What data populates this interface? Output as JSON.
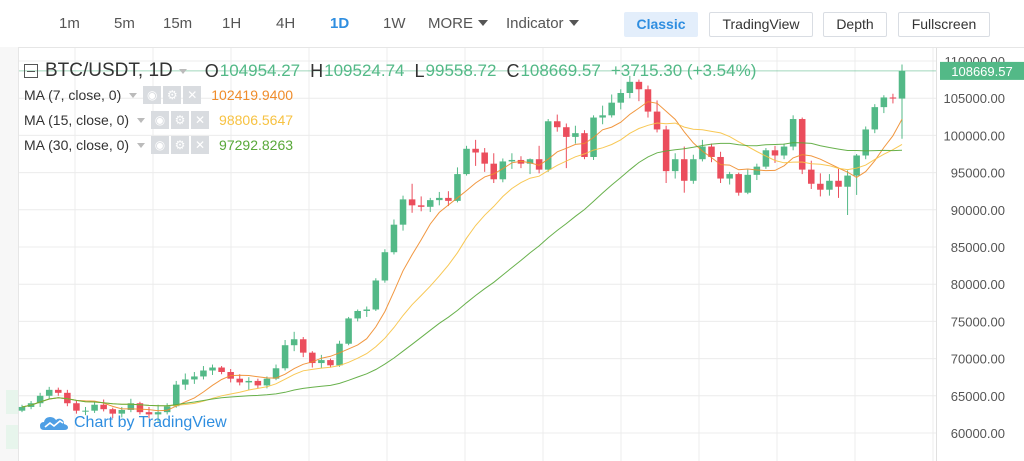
{
  "toolbar": {
    "intervals": [
      "1m",
      "5m",
      "15m",
      "1H",
      "4H",
      "1D",
      "1W"
    ],
    "active_interval": "1D",
    "more_label": "MORE",
    "indicator_label": "Indicator",
    "view_buttons": [
      "Classic",
      "TradingView",
      "Depth",
      "Fullscreen"
    ],
    "active_view": "Classic"
  },
  "legend": {
    "symbol": "BTC/USDT, 1D",
    "open_label": "O",
    "open": "104954.27",
    "high_label": "H",
    "high": "109524.74",
    "low_label": "L",
    "low": "99558.72",
    "close_label": "C",
    "close": "108669.57",
    "change": "+3715.30 (+3.54%)",
    "ma": [
      {
        "label": "MA (7, close, 0)",
        "value": "102419.9400",
        "color": "#ef8c2b"
      },
      {
        "label": "MA (15, close, 0)",
        "value": "98806.5647",
        "color": "#f7c242"
      },
      {
        "label": "MA (30, close, 0)",
        "value": "97292.8263",
        "color": "#58a839"
      }
    ],
    "icons": [
      "eye-icon",
      "gear-icon",
      "close-icon"
    ]
  },
  "price_badge": "108669.57",
  "watermark": "Chart by TradingView",
  "colors": {
    "up": "#53b987",
    "down": "#eb4d5c",
    "accent": "#2f8ee0",
    "grid": "#ececec"
  },
  "chart_data": {
    "type": "candlestick",
    "y_ticks": [
      60000,
      65000,
      70000,
      75000,
      80000,
      85000,
      90000,
      95000,
      100000,
      105000,
      110000
    ],
    "y_tick_labels": [
      "60000.00",
      "65000.00",
      "70000.00",
      "75000.00",
      "80000.00",
      "85000.00",
      "90000.00",
      "95000.00",
      "100000.00",
      "105000.00",
      "110000.00"
    ],
    "ylim": [
      57500,
      111500
    ],
    "last_price": 108669.57,
    "candles": [
      [
        63000,
        63800,
        62800,
        63500
      ],
      [
        63500,
        64300,
        63200,
        64000
      ],
      [
        64000,
        65400,
        63500,
        65000
      ],
      [
        65000,
        66200,
        64500,
        65800
      ],
      [
        65800,
        66100,
        65000,
        65400
      ],
      [
        65400,
        65800,
        63600,
        64000
      ],
      [
        64000,
        64300,
        62600,
        63000
      ],
      [
        63000,
        63500,
        62400,
        63000
      ],
      [
        63000,
        64200,
        62700,
        63800
      ],
      [
        63800,
        64500,
        62900,
        63200
      ],
      [
        63200,
        63400,
        62000,
        62600
      ],
      [
        62600,
        63500,
        62100,
        63100
      ],
      [
        63100,
        64600,
        62800,
        64000
      ],
      [
        64000,
        64200,
        62500,
        62800
      ],
      [
        62800,
        63500,
        62000,
        62500
      ],
      [
        62500,
        63800,
        61500,
        62800
      ],
      [
        62800,
        64000,
        62500,
        63600
      ],
      [
        63600,
        67000,
        63400,
        66500
      ],
      [
        66500,
        68000,
        65800,
        67200
      ],
      [
        67200,
        68200,
        66600,
        67600
      ],
      [
        67600,
        69000,
        67200,
        68400
      ],
      [
        68400,
        69200,
        67800,
        68800
      ],
      [
        68800,
        69000,
        67900,
        68200
      ],
      [
        68200,
        68600,
        66800,
        67300
      ],
      [
        67300,
        67900,
        66400,
        66800
      ],
      [
        66800,
        67500,
        65800,
        67000
      ],
      [
        67000,
        67300,
        66000,
        66400
      ],
      [
        66400,
        67600,
        66000,
        67300
      ],
      [
        67300,
        69200,
        67100,
        68700
      ],
      [
        68700,
        72500,
        68400,
        71800
      ],
      [
        71800,
        73600,
        71000,
        72600
      ],
      [
        72600,
        72900,
        70200,
        70800
      ],
      [
        70800,
        71000,
        68800,
        69400
      ],
      [
        69400,
        70500,
        68700,
        69800
      ],
      [
        69800,
        70000,
        68800,
        69100
      ],
      [
        69100,
        72400,
        68900,
        72000
      ],
      [
        72000,
        75600,
        71800,
        75400
      ],
      [
        75400,
        76600,
        75000,
        76400
      ],
      [
        76400,
        77000,
        75600,
        76600
      ],
      [
        76600,
        80800,
        76400,
        80500
      ],
      [
        80500,
        84700,
        80200,
        84300
      ],
      [
        84300,
        88700,
        84000,
        88000
      ],
      [
        88000,
        91900,
        87200,
        91400
      ],
      [
        91400,
        93500,
        89600,
        90600
      ],
      [
        90600,
        91800,
        89800,
        90400
      ],
      [
        90400,
        91600,
        89700,
        91300
      ],
      [
        91300,
        92400,
        90600,
        91600
      ],
      [
        91600,
        92500,
        90500,
        91200
      ],
      [
        91200,
        95700,
        91000,
        94800
      ],
      [
        94800,
        98600,
        94600,
        98200
      ],
      [
        98200,
        99400,
        95900,
        97700
      ],
      [
        97700,
        98300,
        95100,
        96200
      ],
      [
        96200,
        97600,
        93600,
        94100
      ],
      [
        94100,
        96900,
        93700,
        96500
      ],
      [
        96500,
        97600,
        95500,
        96700
      ],
      [
        96700,
        97200,
        95600,
        96200
      ],
      [
        96200,
        96900,
        94800,
        96800
      ],
      [
        96800,
        98600,
        94900,
        95400
      ],
      [
        95400,
        102200,
        95100,
        101900
      ],
      [
        101900,
        102800,
        100500,
        101100
      ],
      [
        101100,
        101600,
        95600,
        99800
      ],
      [
        99800,
        101300,
        98900,
        100300
      ],
      [
        100300,
        100700,
        96800,
        97100
      ],
      [
        97100,
        102700,
        96700,
        102400
      ],
      [
        102400,
        104000,
        101500,
        102700
      ],
      [
        102700,
        105500,
        102400,
        104400
      ],
      [
        104400,
        106200,
        103500,
        105700
      ],
      [
        105700,
        108000,
        105000,
        107200
      ],
      [
        107200,
        107500,
        104600,
        106200
      ],
      [
        106200,
        106700,
        102400,
        103200
      ],
      [
        103200,
        104700,
        100400,
        100800
      ],
      [
        100800,
        101300,
        93600,
        95200
      ],
      [
        95200,
        97600,
        94200,
        96800
      ],
      [
        96800,
        98500,
        92300,
        93900
      ],
      [
        93900,
        97400,
        93500,
        96800
      ],
      [
        96800,
        99400,
        96500,
        98500
      ],
      [
        98500,
        98900,
        96400,
        97100
      ],
      [
        97100,
        97800,
        93600,
        94200
      ],
      [
        94200,
        95100,
        93400,
        94800
      ],
      [
        94800,
        95000,
        91900,
        92300
      ],
      [
        92300,
        95400,
        92100,
        94700
      ],
      [
        94700,
        96200,
        94000,
        95800
      ],
      [
        95800,
        98300,
        95500,
        98000
      ],
      [
        98000,
        98600,
        96300,
        97300
      ],
      [
        97300,
        98900,
        96800,
        98500
      ],
      [
        98500,
        102700,
        98000,
        102200
      ],
      [
        102200,
        102400,
        94800,
        95400
      ],
      [
        95400,
        96600,
        92800,
        93500
      ],
      [
        93500,
        94900,
        91800,
        92700
      ],
      [
        92700,
        94800,
        91900,
        93900
      ],
      [
        93900,
        95500,
        91600,
        93100
      ],
      [
        93100,
        95300,
        89300,
        94600
      ],
      [
        94600,
        97500,
        92000,
        97300
      ],
      [
        97300,
        101200,
        96800,
        100800
      ],
      [
        100800,
        104200,
        100300,
        103800
      ],
      [
        103800,
        105400,
        103000,
        105100
      ],
      [
        105100,
        105600,
        104300,
        104950
      ],
      [
        104950,
        109524,
        99558,
        108669
      ]
    ]
  }
}
